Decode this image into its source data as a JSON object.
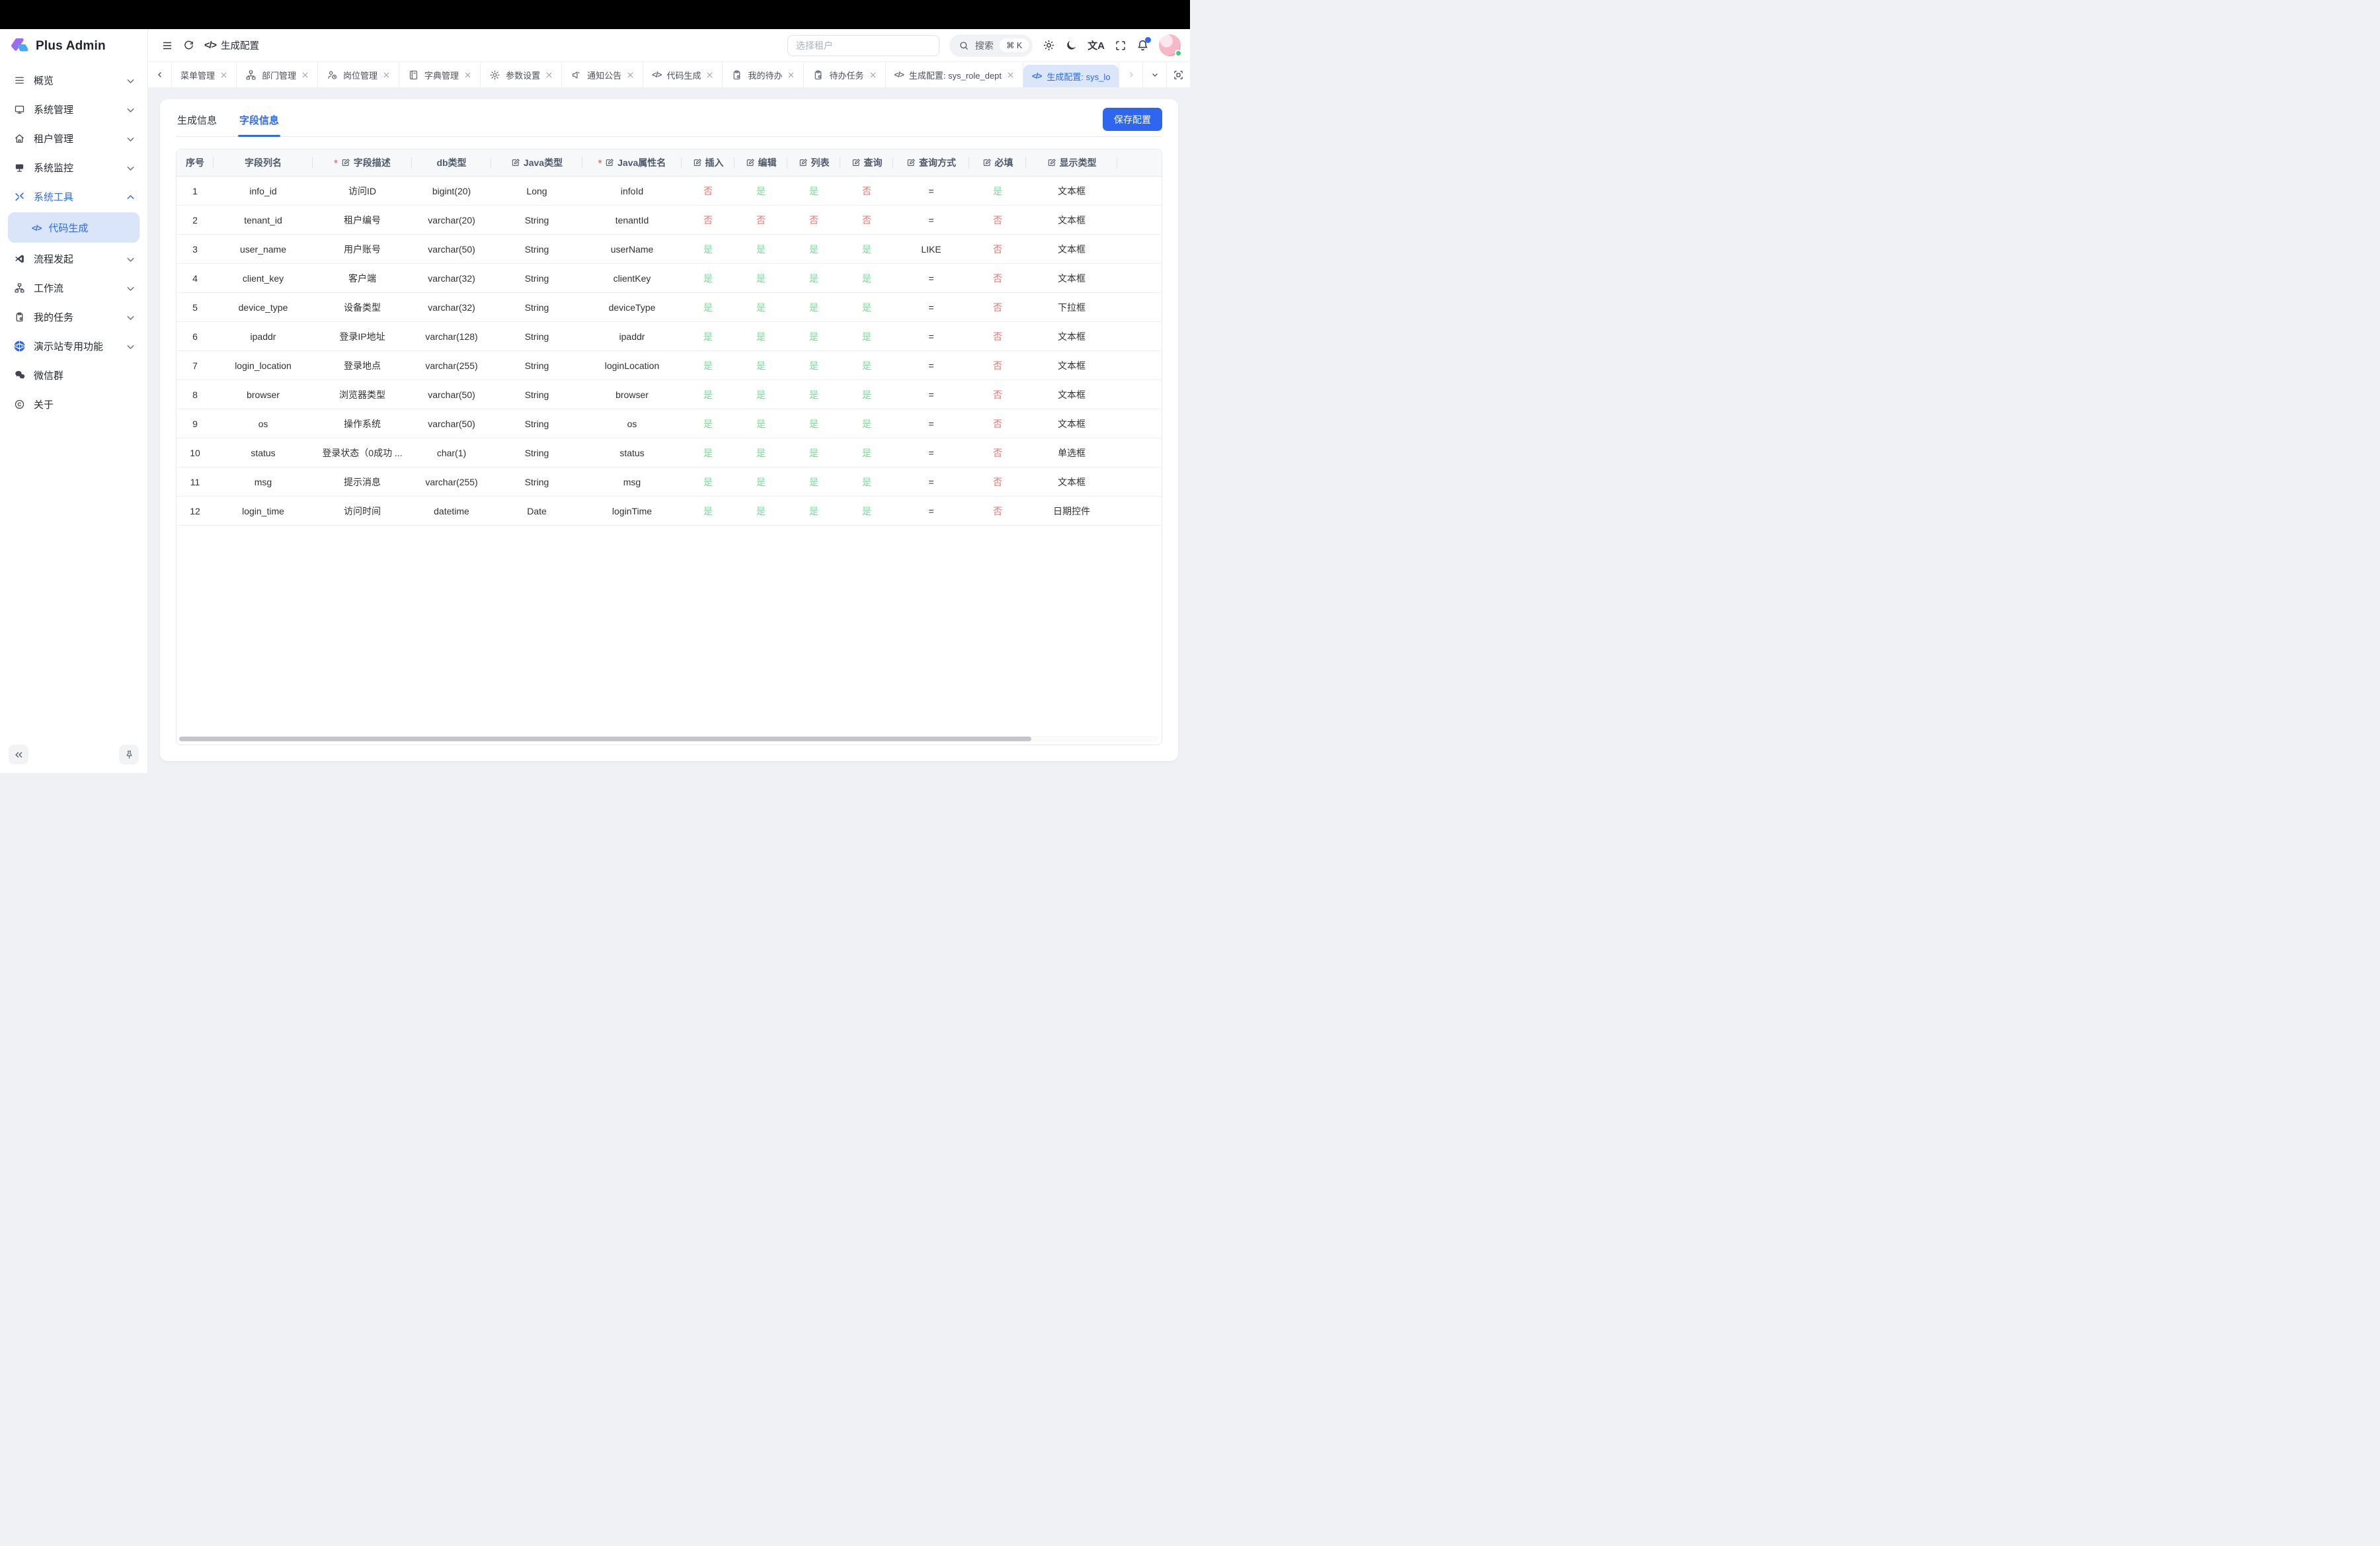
{
  "app": {
    "brand": "Plus Admin"
  },
  "header": {
    "breadcrumb_icon": "</>",
    "breadcrumb": "生成配置",
    "tenant_placeholder": "选择租户",
    "search_label": "搜索",
    "search_kbd": "⌘ K"
  },
  "tabbar": {
    "tabs": [
      {
        "id": "menu-mgmt",
        "icon": null,
        "label": "菜单管理"
      },
      {
        "id": "dept-mgmt",
        "icon": "sitemap",
        "label": "部门管理"
      },
      {
        "id": "post-mgmt",
        "icon": "person",
        "label": "岗位管理"
      },
      {
        "id": "dict-mgmt",
        "icon": "book",
        "label": "字典管理"
      },
      {
        "id": "param-settings",
        "icon": "gear",
        "label": "参数设置"
      },
      {
        "id": "notice",
        "icon": "megaphone",
        "label": "通知公告"
      },
      {
        "id": "code-gen",
        "icon": "code",
        "label": "代码生成"
      },
      {
        "id": "my-todo",
        "icon": "clipboard",
        "label": "我的待办"
      },
      {
        "id": "todo-task",
        "icon": "clipboard",
        "label": "待办任务"
      },
      {
        "id": "gen-sys-role-dept",
        "icon": "code",
        "label": "生成配置: sys_role_dept"
      },
      {
        "id": "gen-sys-lo",
        "icon": "code",
        "label": "生成配置: sys_lo",
        "active": true
      }
    ]
  },
  "sidebar": {
    "items": [
      {
        "id": "overview",
        "icon": "menu",
        "label": "概览",
        "chevron": "down"
      },
      {
        "id": "system-mgmt",
        "icon": "monitor",
        "label": "系统管理",
        "chevron": "down"
      },
      {
        "id": "tenant-mgmt",
        "icon": "home",
        "label": "租户管理",
        "chevron": "down"
      },
      {
        "id": "system-mon",
        "icon": "display",
        "label": "系统监控",
        "chevron": "down"
      },
      {
        "id": "system-tools",
        "icon": "tools",
        "label": "系统工具",
        "chevron": "up",
        "active": true,
        "children": [
          {
            "id": "code-gen",
            "icon": "code",
            "label": "代码生成",
            "active": true
          }
        ]
      },
      {
        "id": "flow-start",
        "icon": "vscode",
        "label": "流程发起",
        "chevron": "down"
      },
      {
        "id": "workflow",
        "icon": "sitemap",
        "label": "工作流",
        "chevron": "down"
      },
      {
        "id": "my-tasks",
        "icon": "clipboard",
        "label": "我的任务",
        "chevron": "down"
      },
      {
        "id": "demo-only",
        "icon": "demo",
        "label": "演示站专用功能",
        "chevron": "down"
      },
      {
        "id": "wechat-group",
        "icon": "wechat",
        "label": "微信群"
      },
      {
        "id": "about",
        "icon": "about",
        "label": "关于"
      }
    ]
  },
  "content": {
    "tabs": [
      {
        "id": "gen-info",
        "label": "生成信息"
      },
      {
        "id": "field-info",
        "label": "字段信息",
        "active": true
      }
    ],
    "save_button": "保存配置"
  },
  "table": {
    "columns": [
      {
        "id": "index",
        "label": "序号",
        "width": 56
      },
      {
        "id": "column-name",
        "label": "字段列名",
        "width": 150
      },
      {
        "id": "field-desc",
        "label": "字段描述",
        "width": 150,
        "required": true,
        "edit": true
      },
      {
        "id": "db-type",
        "label": "db类型",
        "width": 120
      },
      {
        "id": "java-type",
        "label": "Java类型",
        "width": 138,
        "edit": true
      },
      {
        "id": "java-attr",
        "label": "Java属性名",
        "width": 150,
        "required": true,
        "edit": true
      },
      {
        "id": "insert",
        "label": "插入",
        "width": 80,
        "edit": true,
        "type": "yn"
      },
      {
        "id": "edit",
        "label": "编辑",
        "width": 80,
        "edit": true,
        "type": "yn"
      },
      {
        "id": "list",
        "label": "列表",
        "width": 80,
        "edit": true,
        "type": "yn"
      },
      {
        "id": "query",
        "label": "查询",
        "width": 80,
        "edit": true,
        "type": "yn"
      },
      {
        "id": "query-type",
        "label": "查询方式",
        "width": 115,
        "edit": true
      },
      {
        "id": "required",
        "label": "必填",
        "width": 86,
        "edit": true,
        "type": "yn"
      },
      {
        "id": "display-type",
        "label": "显示类型",
        "width": 138,
        "edit": true
      },
      {
        "id": "filler",
        "label": "",
        "width": 0
      }
    ],
    "rows": [
      [
        "1",
        "info_id",
        "访问ID",
        "bigint(20)",
        "Long",
        "infoId",
        "否",
        "是",
        "是",
        "否",
        "=",
        "是",
        "文本框"
      ],
      [
        "2",
        "tenant_id",
        "租户编号",
        "varchar(20)",
        "String",
        "tenantId",
        "否",
        "否",
        "否",
        "否",
        "=",
        "否",
        "文本框"
      ],
      [
        "3",
        "user_name",
        "用户账号",
        "varchar(50)",
        "String",
        "userName",
        "是",
        "是",
        "是",
        "是",
        "LIKE",
        "否",
        "文本框"
      ],
      [
        "4",
        "client_key",
        "客户端",
        "varchar(32)",
        "String",
        "clientKey",
        "是",
        "是",
        "是",
        "是",
        "=",
        "否",
        "文本框"
      ],
      [
        "5",
        "device_type",
        "设备类型",
        "varchar(32)",
        "String",
        "deviceType",
        "是",
        "是",
        "是",
        "是",
        "=",
        "否",
        "下拉框"
      ],
      [
        "6",
        "ipaddr",
        "登录IP地址",
        "varchar(128)",
        "String",
        "ipaddr",
        "是",
        "是",
        "是",
        "是",
        "=",
        "否",
        "文本框"
      ],
      [
        "7",
        "login_location",
        "登录地点",
        "varchar(255)",
        "String",
        "loginLocation",
        "是",
        "是",
        "是",
        "是",
        "=",
        "否",
        "文本框"
      ],
      [
        "8",
        "browser",
        "浏览器类型",
        "varchar(50)",
        "String",
        "browser",
        "是",
        "是",
        "是",
        "是",
        "=",
        "否",
        "文本框"
      ],
      [
        "9",
        "os",
        "操作系统",
        "varchar(50)",
        "String",
        "os",
        "是",
        "是",
        "是",
        "是",
        "=",
        "否",
        "文本框"
      ],
      [
        "10",
        "status",
        "登录状态（0成功 ...",
        "char(1)",
        "String",
        "status",
        "是",
        "是",
        "是",
        "是",
        "=",
        "否",
        "单选框"
      ],
      [
        "11",
        "msg",
        "提示消息",
        "varchar(255)",
        "String",
        "msg",
        "是",
        "是",
        "是",
        "是",
        "=",
        "否",
        "文本框"
      ],
      [
        "12",
        "login_time",
        "访问时间",
        "datetime",
        "Date",
        "loginTime",
        "是",
        "是",
        "是",
        "是",
        "=",
        "否",
        "日期控件"
      ]
    ]
  },
  "colors": {
    "primary": "#2f6bf0",
    "primary_soft": "#dbe5fa",
    "yes_green": "#84d49c",
    "no_red": "#f56c6c"
  }
}
